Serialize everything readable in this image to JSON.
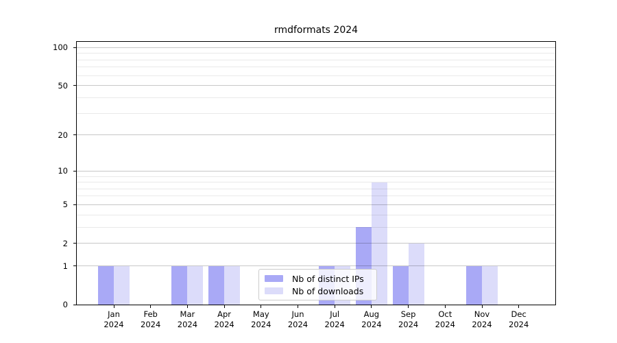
{
  "page": {
    "background": "#ffffff"
  },
  "chart_data": {
    "type": "bar",
    "title": "rmdformats 2024",
    "categories": [
      "Jan 2024",
      "Feb 2024",
      "Mar 2024",
      "Apr 2024",
      "May 2024",
      "Jun 2024",
      "Jul 2024",
      "Aug 2024",
      "Sep 2024",
      "Oct 2024",
      "Nov 2024",
      "Dec 2024"
    ],
    "series": [
      {
        "name": "Nb of distinct IPs",
        "color": "#a9a9f6",
        "values": [
          1,
          0,
          1,
          1,
          0,
          0,
          1,
          3,
          1,
          0,
          1,
          0
        ]
      },
      {
        "name": "Nb of downloads",
        "color": "#dcdcfa",
        "values": [
          1,
          0,
          1,
          1,
          0,
          0,
          1,
          8,
          2,
          0,
          1,
          0
        ]
      }
    ],
    "y_axis": {
      "scale": "log1p",
      "major_ticks": [
        0,
        1,
        2,
        5,
        10,
        20,
        50,
        100
      ],
      "minor_ticks": [
        3,
        4,
        6,
        7,
        8,
        9,
        30,
        40,
        60,
        70,
        80,
        90
      ],
      "range_top": 110
    },
    "x_axis": {
      "label_format": "month-over-year"
    },
    "legend": {
      "position": "lower-center-inside"
    },
    "grid": {
      "enabled": true,
      "major_color": "rgba(0,0,0,0.22)",
      "minor_color": "rgba(0,0,0,0.085)"
    }
  }
}
